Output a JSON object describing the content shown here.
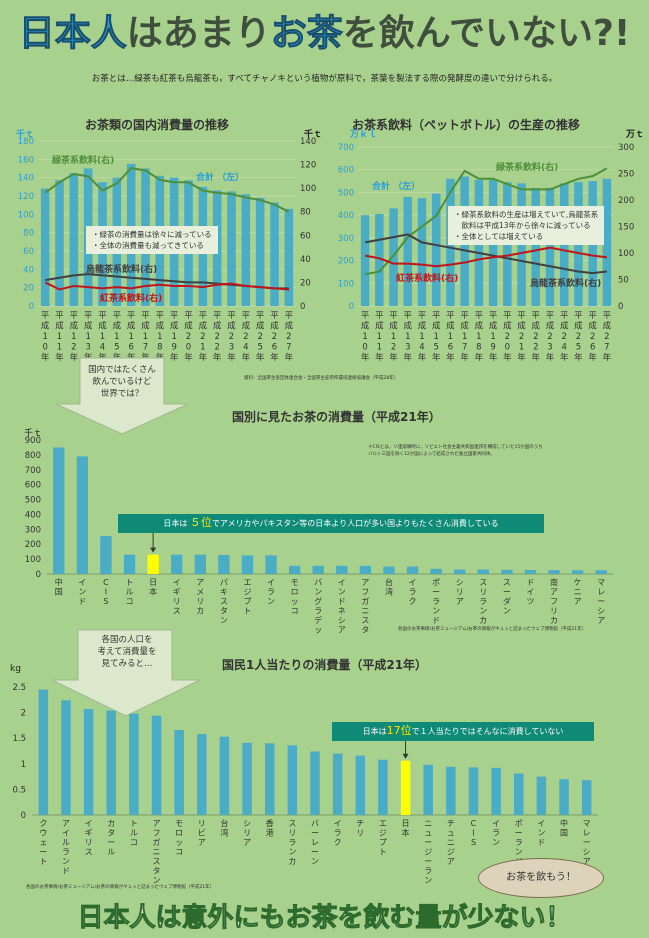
{
  "header": {
    "title_parts": [
      "日本人",
      "はあまり",
      "お茶",
      "を飲んでいない?!"
    ],
    "intro": "お茶とは…緑茶も紅茶も烏龍茶も，すべてチャノキという植物が原料で，茶葉を製法する際の発酵度の違いで分けられる。"
  },
  "footer": {
    "text": "日本人は意外にもお茶を飲む量が少ない！",
    "bubble": "お茶を飲もう！"
  },
  "chart_data": [
    {
      "type": "bar",
      "title": "お茶類の国内消費量の推移",
      "categories": [
        "平成10年",
        "平成11年",
        "平成12年",
        "平成13年",
        "平成14年",
        "平成15年",
        "平成16年",
        "平成17年",
        "平成18年",
        "平成19年",
        "平成20年",
        "平成21年",
        "平成22年",
        "平成23年",
        "平成24年",
        "平成25年",
        "平成26年",
        "平成27年"
      ],
      "ylabel_left": "千ｔ",
      "ylim_left": [
        0,
        180
      ],
      "yticks_left": [
        0,
        20,
        40,
        60,
        80,
        100,
        120,
        140,
        160,
        180
      ],
      "ylabel_right": "千ｔ",
      "ylim_right": [
        0,
        140
      ],
      "yticks_right": [
        0,
        20,
        40,
        60,
        80,
        100,
        120,
        140
      ],
      "series": [
        {
          "name": "合計 （左）",
          "kind": "bar",
          "axis": "left",
          "color": "#4bacc6",
          "values": [
            128,
            137,
            145,
            150,
            135,
            140,
            155,
            150,
            142,
            140,
            137,
            130,
            126,
            125,
            122,
            118,
            113,
            106
          ]
        },
        {
          "name": "緑茶系飲料(右)",
          "kind": "line",
          "axis": "right",
          "color": "#4e8f3a",
          "values": [
            96,
            105,
            112,
            110,
            98,
            104,
            117,
            115,
            107,
            105,
            105,
            98,
            96,
            95,
            92,
            90,
            86,
            80
          ]
        },
        {
          "name": "烏龍茶系飲料(右)",
          "kind": "line",
          "axis": "right",
          "color": "#404040",
          "values": [
            22,
            24,
            26,
            27,
            26,
            25,
            24,
            23,
            22,
            21,
            20,
            20,
            19,
            18,
            17,
            16,
            15,
            15
          ]
        },
        {
          "name": "紅茶系飲料(右)",
          "kind": "line",
          "axis": "right",
          "color": "#c0151a",
          "values": [
            20,
            14,
            17,
            16,
            15,
            16,
            15,
            17,
            18,
            17,
            17,
            16,
            18,
            19,
            17,
            16,
            15,
            14
          ]
        }
      ],
      "callout": [
        "・緑茶の消費量は徐々に減っている",
        "・全体の消費量も減ってきている"
      ],
      "source": "資料：全国茶生産団体連合会・全国茶主産府県農協連絡協議会（平成28年）"
    },
    {
      "type": "bar",
      "title": "お茶系飲料（ペットボトル）の生産の推移",
      "categories": [
        "平成10年",
        "平成11年",
        "平成12年",
        "平成13年",
        "平成14年",
        "平成15年",
        "平成16年",
        "平成17年",
        "平成18年",
        "平成19年",
        "平成20年",
        "平成21年",
        "平成22年",
        "平成23年",
        "平成24年",
        "平成25年",
        "平成26年",
        "平成27年"
      ],
      "ylabel_left": "万ｋｌ",
      "ylim_left": [
        0,
        700
      ],
      "yticks_left": [
        0,
        100,
        200,
        300,
        400,
        500,
        600,
        700
      ],
      "ylabel_right": "万ｔ",
      "ylim_right": [
        0,
        300
      ],
      "yticks_right": [
        0,
        50,
        100,
        150,
        200,
        250,
        300
      ],
      "series": [
        {
          "name": "合計 （左）",
          "kind": "bar",
          "axis": "left",
          "color": "#4bacc6",
          "values": [
            400,
            405,
            430,
            480,
            475,
            495,
            560,
            570,
            555,
            555,
            545,
            540,
            520,
            520,
            540,
            545,
            550,
            560
          ]
        },
        {
          "name": "緑茶系飲料(右)",
          "kind": "line",
          "axis": "right",
          "color": "#4e8f3a",
          "values": [
            60,
            65,
            95,
            130,
            150,
            170,
            215,
            255,
            240,
            240,
            230,
            220,
            220,
            220,
            230,
            240,
            245,
            260
          ]
        },
        {
          "name": "烏龍茶系飲料(右)",
          "kind": "line",
          "axis": "right",
          "color": "#404040",
          "values": [
            120,
            125,
            130,
            135,
            120,
            115,
            110,
            105,
            100,
            95,
            90,
            85,
            80,
            75,
            70,
            65,
            62,
            65
          ]
        },
        {
          "name": "紅茶系飲料(右)",
          "kind": "line",
          "axis": "right",
          "color": "#c0151a",
          "values": [
            95,
            90,
            80,
            80,
            78,
            75,
            78,
            82,
            88,
            92,
            95,
            100,
            105,
            110,
            105,
            100,
            95,
            92
          ]
        }
      ],
      "callout": [
        "・緑茶系飲料の生産は増えていて,烏龍茶系",
        "　飲料は平成13年から徐々に減っている",
        "・全体としては増えている"
      ]
    },
    {
      "type": "bar",
      "title": "国別に見たお茶の消費量（平成21年）",
      "ylabel": "千ｔ",
      "ylim": [
        0,
        900
      ],
      "yticks": [
        0,
        100,
        200,
        300,
        400,
        500,
        600,
        700,
        800,
        900
      ],
      "categories": [
        "中国",
        "インド",
        "CIS",
        "トルコ",
        "日本",
        "イギリス",
        "アメリカ",
        "パキスタン",
        "エジプト",
        "イラン",
        "モロッコ",
        "バングラデッシュ",
        "インドネシア",
        "アフガニスタン",
        "台湾",
        "イラク",
        "ポーランド",
        "シリア",
        "スリランカ",
        "スーダン",
        "ドイツ",
        "南アフリカ",
        "ケニア",
        "マレーシア"
      ],
      "values": [
        850,
        790,
        255,
        130,
        130,
        130,
        130,
        128,
        125,
        125,
        55,
        55,
        55,
        55,
        50,
        50,
        35,
        30,
        30,
        28,
        27,
        26,
        25,
        25
      ],
      "highlight": "日本",
      "arrow_note": [
        "国内ではたくさん",
        "飲んでいるけど",
        "世界では？"
      ],
      "footnote": [
        "＊CISとは，ソ連崩壊時に，ソビエト社会主義共和国連邦を構成していた15か国のうち",
        "バルト三国を除く12か国によって結成された独立国家共同体。"
      ],
      "banner": {
        "pre": "日本は ",
        "rank": "５位",
        "post": "でアメリカやパキスタン等の日本より人口が多い国よりもたくさん消費している"
      },
      "source": "各国のお茶事情/お茶ミュージアム/お茶の情報がギュッと詰まったウェブ博物館（平成21年）"
    },
    {
      "type": "bar",
      "title": "国民1人当たりの消費量（平成21年）",
      "ylabel": "kg",
      "ylim": [
        0,
        2.5
      ],
      "yticks": [
        0,
        0.5,
        1,
        1.5,
        2,
        2.5
      ],
      "categories": [
        "クウェート",
        "アイルランド",
        "イギリス",
        "カタール",
        "トルコ",
        "アフガニスタン",
        "モロッコ",
        "リビア",
        "台湾",
        "シリア",
        "香港",
        "スリランカ",
        "バーレーン",
        "イラク",
        "チリ",
        "エジプト",
        "日本",
        "ニュージーランド",
        "チュニジア",
        "CIS",
        "イラン",
        "ポーランド",
        "インド",
        "中国",
        "マレーシア"
      ],
      "values": [
        2.45,
        2.24,
        2.07,
        2.04,
        1.98,
        1.94,
        1.66,
        1.58,
        1.53,
        1.41,
        1.4,
        1.36,
        1.24,
        1.2,
        1.16,
        1.08,
        1.06,
        0.98,
        0.94,
        0.93,
        0.92,
        0.81,
        0.75,
        0.7,
        0.68
      ],
      "highlight": "日本",
      "arrow_note": [
        "各国の人口を",
        "考えて消費量を",
        "見てみると…"
      ],
      "banner": {
        "pre": "日本は",
        "rank": "17位",
        "post": "で１人当たりではそんなに消費していない"
      },
      "source": "各国のお茶事情/お茶ミュージアム/お茶の情報がギュッと詰まったウェブ博物館（平成21年）"
    }
  ]
}
